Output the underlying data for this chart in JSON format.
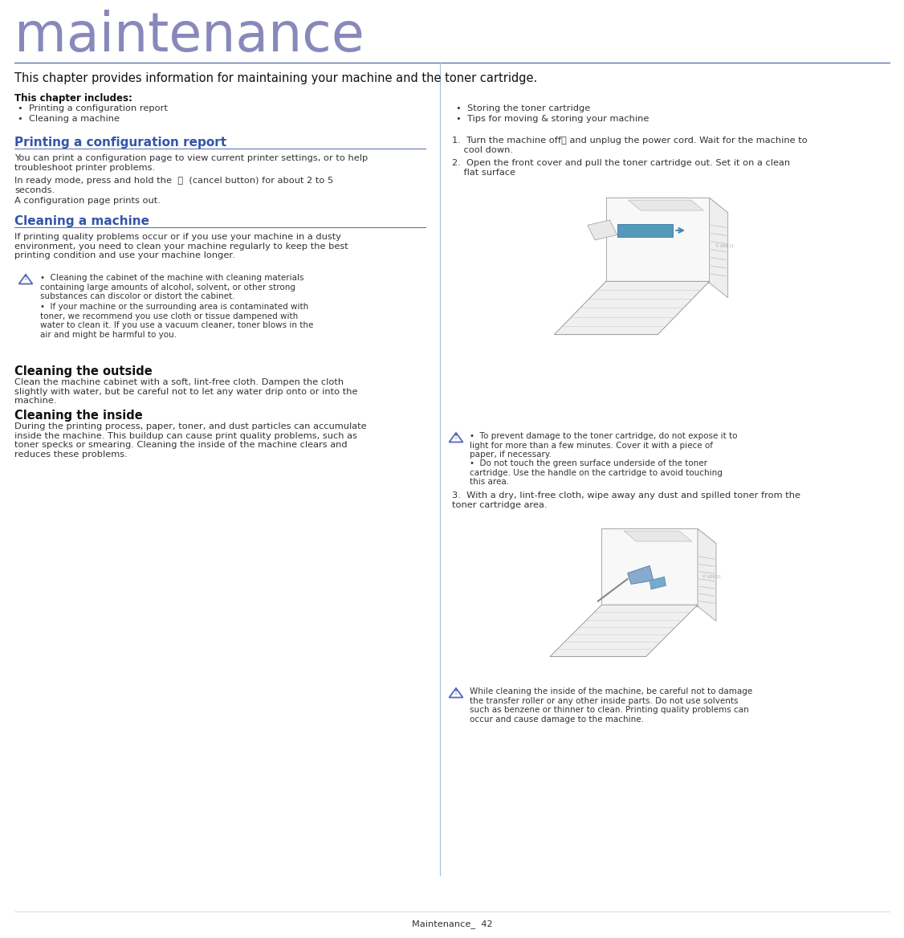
{
  "bg_color": "#ffffff",
  "title_text": "maintenance",
  "title_color": "#8888bb",
  "title_fontsize": 48,
  "header_line_color": "#5566aa",
  "body_color": "#333333",
  "dark_color": "#111111",
  "blue_heading_color": "#3355aa",
  "section_line_color": "#5566aa",
  "warn_color": "#5566bb",
  "intro_text": "This chapter provides information for maintaining your machine and the toner cartridge.",
  "chapter_includes_bold": "This chapter includes:",
  "bullet_items_left": [
    "Printing a configuration report",
    "Cleaning a machine"
  ],
  "bullet_items_right": [
    "Storing the toner cartridge",
    "Tips for moving & storing your machine"
  ],
  "section1_heading": "Printing a configuration report",
  "section1_body1": "You can print a configuration page to view current printer settings, or to help\ntroubleshoot printer problems.",
  "section1_body2": "In ready mode, press and hold the  Ⓡ  (cancel button) for about 2 to 5\nseconds.",
  "section1_body3": "A configuration page prints out.",
  "section2_heading": "Cleaning a machine",
  "section2_body": "If printing quality problems occur or if you use your machine in a dusty\nenvironment, you need to clean your machine regularly to keep the best\nprinting condition and use your machine longer.",
  "warn_left1": "Cleaning the cabinet of the machine with cleaning materials\ncontaining large amounts of alcohol, solvent, or other strong\nsubstances can discolor or distort the cabinet.",
  "warn_left2": "If your machine or the surrounding area is contaminated with\ntoner, we recommend you use cloth or tissue dampened with\nwater to clean it. If you use a vacuum cleaner, toner blows in the\nair and might be harmful to you.",
  "section3_heading": "Cleaning the outside",
  "section3_body": "Clean the machine cabinet with a soft, lint-free cloth. Dampen the cloth\nslightly with water, but be careful not to let any water drip onto or into the\nmachine.",
  "section4_heading": "Cleaning the inside",
  "section4_body": "During the printing process, paper, toner, and dust particles can accumulate\ninside the machine. This buildup can cause print quality problems, such as\ntoner specks or smearing. Cleaning the inside of the machine clears and\nreduces these problems.",
  "right_step1": "Turn the machine off",
  "right_step1b": " and unplug the power cord. Wait for the machine to\ncool down.",
  "right_step2": "Open the front cover and pull the toner cartridge out. Set it on a clean\nflat surface",
  "right_warn1": "To prevent damage to the toner cartridge, do not expose it to\nlight for more than a few minutes. Cover it with a piece of\npaper, if necessary.",
  "right_warn2": "Do not touch the green surface underside of the toner\ncartridge. Use the handle on the cartridge to avoid touching\nthis area.",
  "right_step3": "With a dry, lint-free cloth, wipe away any dust and spilled toner from the\ntoner cartridge area.",
  "right_bot_warn": "While cleaning the inside of the machine, be careful not to damage\nthe transfer roller or any other inside parts. Do not use solvents\nsuch as benzene or thinner to clean. Printing quality problems can\noccur and cause damage to the machine.",
  "footer_text": "Maintenance_  42",
  "small_fs": 8.2,
  "body_fs": 8.2,
  "heading_fs": 11.0,
  "intro_fs": 10.5,
  "chap_bold_fs": 8.5
}
